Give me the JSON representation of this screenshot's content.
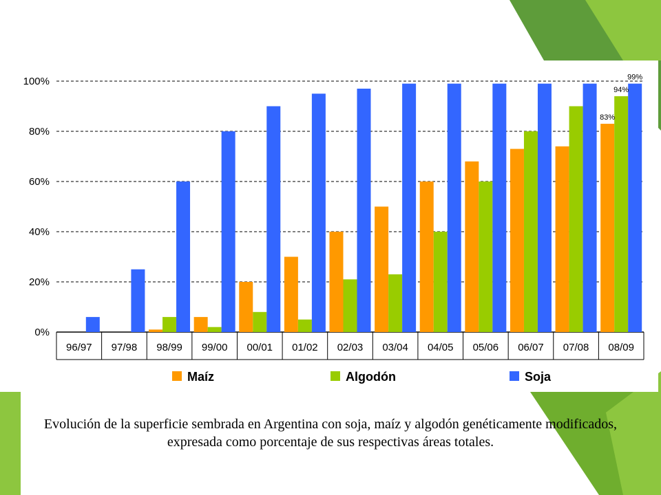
{
  "caption": "Evolución de la superficie sembrada en Argentina con soja, maíz y algodón genéticamente modificados, expresada como porcentaje de sus respectivas áreas totales.",
  "colors": {
    "maiz": "#ff9900",
    "algodon": "#99cc00",
    "soja": "#3366ff",
    "deco_green": "#8dc63f",
    "deco_dark": "#5e9c3a",
    "deco_mid": "#6fae2e"
  },
  "chart_data": {
    "type": "bar",
    "categories": [
      "96/97",
      "97/98",
      "98/99",
      "99/00",
      "00/01",
      "01/02",
      "02/03",
      "03/04",
      "04/05",
      "05/06",
      "06/07",
      "07/08",
      "08/09"
    ],
    "series": [
      {
        "name": "Maíz",
        "values": [
          0,
          0,
          1,
          6,
          20,
          30,
          40,
          50,
          60,
          68,
          73,
          74,
          83
        ]
      },
      {
        "name": "Algodón",
        "values": [
          0,
          0,
          6,
          2,
          8,
          5,
          21,
          23,
          40,
          60,
          80,
          90,
          94
        ]
      },
      {
        "name": "Soja",
        "values": [
          6,
          25,
          60,
          80,
          90,
          95,
          97,
          99,
          99,
          99,
          99,
          99,
          99
        ]
      }
    ],
    "y_ticks": [
      "0%",
      "20%",
      "40%",
      "60%",
      "80%",
      "100%"
    ],
    "ylim": [
      0,
      100
    ],
    "data_labels": [
      {
        "series": "Maíz",
        "category": "08/09",
        "text": "83%"
      },
      {
        "series": "Algodón",
        "category": "08/09",
        "text": "94%"
      },
      {
        "series": "Soja",
        "category": "08/09",
        "text": "99%"
      }
    ],
    "grid": true,
    "legend_position": "bottom"
  }
}
